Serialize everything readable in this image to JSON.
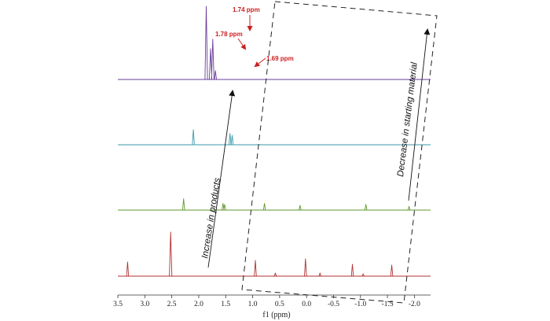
{
  "chart_data": {
    "type": "line",
    "xlabel": "f1 (ppm)",
    "x_ticks": [
      "3.5",
      "3.0",
      "2.5",
      "2.0",
      "1.5",
      "1.0",
      "0.5",
      "0.0",
      "-0.5",
      "-1.0",
      "-1.5",
      "-2.0"
    ],
    "x_tick_values": [
      3.5,
      3.0,
      2.5,
      2.0,
      1.5,
      1.0,
      0.5,
      0.0,
      -0.5,
      -1.0,
      -1.5,
      -2.0
    ],
    "xlim": [
      3.5,
      -2.3
    ],
    "x_reversed": true,
    "series": [
      {
        "color": "#6a3d9a",
        "peaks": [
          {
            "ppm": 1.86,
            "height": 1.0
          },
          {
            "ppm": 1.78,
            "height": 0.42
          },
          {
            "ppm": 1.74,
            "height": 0.55
          },
          {
            "ppm": 1.69,
            "height": 0.12
          }
        ]
      },
      {
        "color": "#3a9aa8",
        "peaks": [
          {
            "ppm": 2.1,
            "height": 0.16
          },
          {
            "ppm": 1.42,
            "height": 0.12
          },
          {
            "ppm": 1.38,
            "height": 0.1
          }
        ]
      },
      {
        "color": "#5e9a2c",
        "peaks": [
          {
            "ppm": 2.28,
            "height": 0.12
          },
          {
            "ppm": 1.55,
            "height": 0.07
          },
          {
            "ppm": 1.52,
            "height": 0.06
          },
          {
            "ppm": 0.78,
            "height": 0.07
          },
          {
            "ppm": 0.12,
            "height": 0.05
          },
          {
            "ppm": -1.1,
            "height": 0.06
          },
          {
            "ppm": -1.9,
            "height": 0.04
          }
        ]
      },
      {
        "color": "#b03030",
        "peaks": [
          {
            "ppm": 3.32,
            "height": 0.18
          },
          {
            "ppm": 2.52,
            "height": 0.56
          },
          {
            "ppm": 0.95,
            "height": 0.2
          },
          {
            "ppm": 0.58,
            "height": 0.04
          },
          {
            "ppm": 0.02,
            "height": 0.22
          },
          {
            "ppm": -0.25,
            "height": 0.04
          },
          {
            "ppm": -0.85,
            "height": 0.15
          },
          {
            "ppm": -1.05,
            "height": 0.03
          },
          {
            "ppm": -1.58,
            "height": 0.14
          }
        ]
      }
    ],
    "peak_annotations": [
      {
        "text": "1.74 ppm",
        "ppm": 1.74,
        "series": 0
      },
      {
        "text": "1.78 ppm",
        "ppm": 1.78,
        "series": 0
      },
      {
        "text": "1.69 ppm",
        "ppm": 1.69,
        "series": 0
      }
    ],
    "annotations": [
      {
        "text": "Increase in products"
      },
      {
        "text": "Decrease in starting material"
      }
    ],
    "grid": false
  },
  "colors": {
    "annotation_red": "#cc1f1f",
    "arrow": "#111111",
    "dashed_box": "#222222"
  }
}
